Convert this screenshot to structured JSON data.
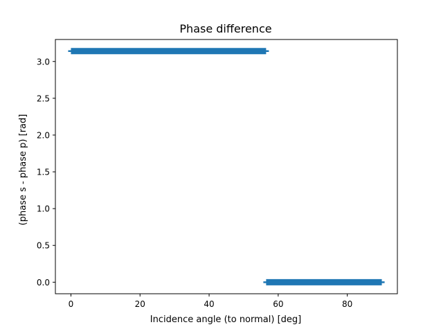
{
  "chart_data": {
    "type": "scatter",
    "title": "Phase difference",
    "xlabel": "Incidence angle (to normal) [deg]",
    "ylabel": "(phase s - phase p) [rad]",
    "xlim": [
      -4.5,
      94.5
    ],
    "ylim": [
      -0.157,
      3.299
    ],
    "xticks": [
      0,
      20,
      40,
      60,
      80
    ],
    "xtick_labels": [
      "0",
      "20",
      "40",
      "60",
      "80"
    ],
    "yticks": [
      0.0,
      0.5,
      1.0,
      1.5,
      2.0,
      2.5,
      3.0
    ],
    "ytick_labels": [
      "0.0",
      "0.5",
      "1.0",
      "1.5",
      "2.0",
      "2.5",
      "3.0"
    ],
    "grid": false,
    "legend": null,
    "marker": "+",
    "series": [
      {
        "color": "#1f77b4",
        "segments": [
          {
            "x_start": 0,
            "x_end": 56.5,
            "y": 3.1416
          },
          {
            "x_start": 56.5,
            "x_end": 90,
            "y": 0.0
          }
        ]
      }
    ]
  }
}
